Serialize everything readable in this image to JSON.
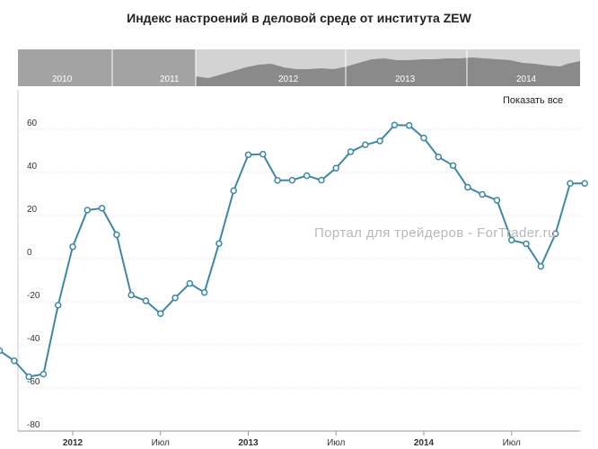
{
  "title": "Индекс настроений в деловой среде от института ZEW",
  "show_all_label": "Показать все",
  "watermark": "Портал для трейдеров - ForTrader.ru",
  "navigator": {
    "year_labels": [
      "2010",
      "2011",
      "2012",
      "2013",
      "2014"
    ],
    "selected_start": "2012-01",
    "selected_end": "2014-12"
  },
  "colors": {
    "line": "#3d88a8",
    "navigator_dark": "#a3a3a3",
    "navigator_light": "#d3d3d3",
    "navigator_area": "#7c7c7c"
  },
  "chart_data": {
    "type": "line",
    "title": "Индекс настроений в деловой среде от института ZEW",
    "ylim": [
      -80,
      70
    ],
    "yticks": [
      60,
      40,
      20,
      0,
      -20,
      -40,
      -60,
      -80
    ],
    "ytick_labels": [
      "60",
      "40",
      "20",
      "0",
      "-20",
      "-40",
      "-60",
      "-80"
    ],
    "xtick_labels": [
      {
        "label": "2012",
        "x": "2012-01",
        "bold": true
      },
      {
        "label": "Июл",
        "x": "2012-07",
        "bold": false
      },
      {
        "label": "2013",
        "x": "2013-01",
        "bold": true
      },
      {
        "label": "Июл",
        "x": "2013-07",
        "bold": false
      },
      {
        "label": "2014",
        "x": "2014-01",
        "bold": true
      },
      {
        "label": "Июл",
        "x": "2014-07",
        "bold": false
      }
    ],
    "grid": true,
    "series": [
      {
        "x": [
          "2011-08",
          "2011-09",
          "2011-10",
          "2011-11",
          "2011-12",
          "2012-01",
          "2012-02",
          "2012-03",
          "2012-04",
          "2012-05",
          "2012-06",
          "2012-07",
          "2012-08",
          "2012-09",
          "2012-10",
          "2012-11",
          "2012-12",
          "2013-01",
          "2013-02",
          "2013-03",
          "2013-04",
          "2013-05",
          "2013-06",
          "2013-07",
          "2013-08",
          "2013-09",
          "2013-10",
          "2013-11",
          "2013-12",
          "2014-01",
          "2014-02",
          "2014-03",
          "2014-04",
          "2014-05",
          "2014-06",
          "2014-07",
          "2014-08",
          "2014-09",
          "2014-10",
          "2014-11",
          "2014-12"
        ],
        "values": [
          -42.7,
          -47.4,
          -54.8,
          -53.6,
          -21.6,
          5.5,
          22.5,
          23.4,
          11.1,
          -16.9,
          -19.6,
          -25.5,
          -18.2,
          -11.5,
          -15.7,
          7.0,
          31.5,
          48.2,
          48.5,
          36.3,
          36.4,
          38.5,
          36.4,
          42.0,
          49.6,
          52.8,
          54.6,
          62.0,
          61.8,
          56.0,
          47.2,
          43.2,
          33.1,
          29.8,
          27.1,
          8.6,
          6.9,
          -3.6,
          11.5,
          34.9,
          34.9
        ]
      }
    ]
  }
}
